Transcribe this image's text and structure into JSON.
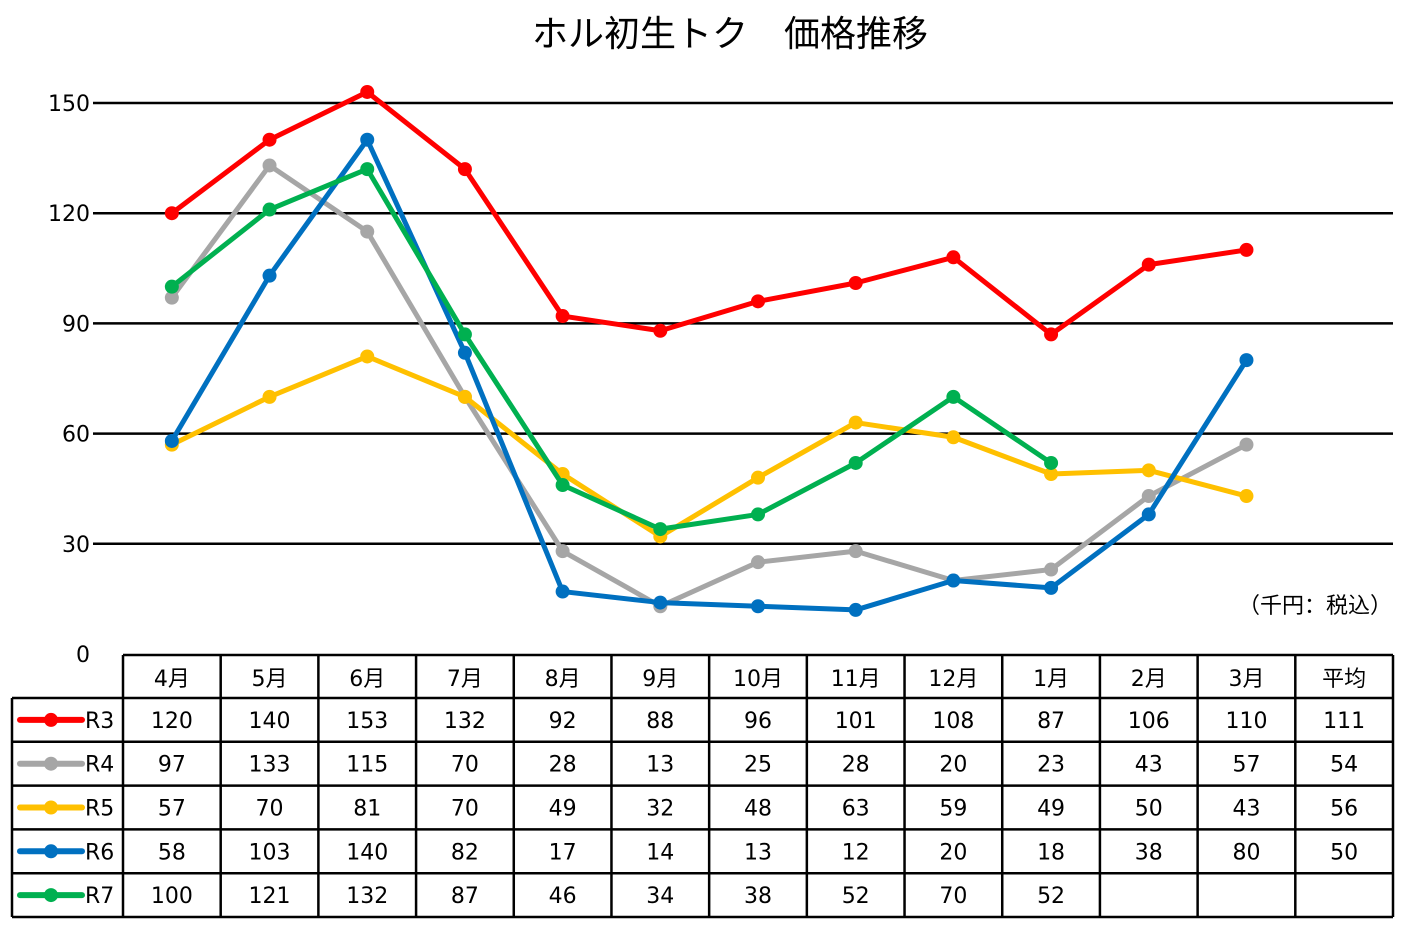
{
  "chart_data": {
    "type": "line",
    "title": "ホル初生トク　価格推移",
    "unit_note": "（千円：税込）",
    "ylim": [
      0,
      150
    ],
    "yticks": [
      0,
      30,
      60,
      90,
      120,
      150
    ],
    "grid": true,
    "legend_placement": "table-left",
    "categories": [
      "4月",
      "5月",
      "6月",
      "7月",
      "8月",
      "9月",
      "10月",
      "11月",
      "12月",
      "1月",
      "2月",
      "3月"
    ],
    "average_label": "平均",
    "series": [
      {
        "name": "R3",
        "color": "#ff0000",
        "values": [
          120,
          140,
          153,
          132,
          92,
          88,
          96,
          101,
          108,
          87,
          106,
          110
        ],
        "average": 111
      },
      {
        "name": "R4",
        "color": "#a6a6a6",
        "values": [
          97,
          133,
          115,
          70,
          28,
          13,
          25,
          28,
          20,
          23,
          43,
          57
        ],
        "average": 54
      },
      {
        "name": "R5",
        "color": "#ffc000",
        "values": [
          57,
          70,
          81,
          70,
          49,
          32,
          48,
          63,
          59,
          49,
          50,
          43
        ],
        "average": 56
      },
      {
        "name": "R6",
        "color": "#0070c0",
        "values": [
          58,
          103,
          140,
          82,
          17,
          14,
          13,
          12,
          20,
          18,
          38,
          80
        ],
        "average": 50
      },
      {
        "name": "R7",
        "color": "#00b050",
        "values": [
          100,
          121,
          132,
          87,
          46,
          34,
          38,
          52,
          70,
          52,
          null,
          null
        ],
        "average": null
      }
    ]
  }
}
